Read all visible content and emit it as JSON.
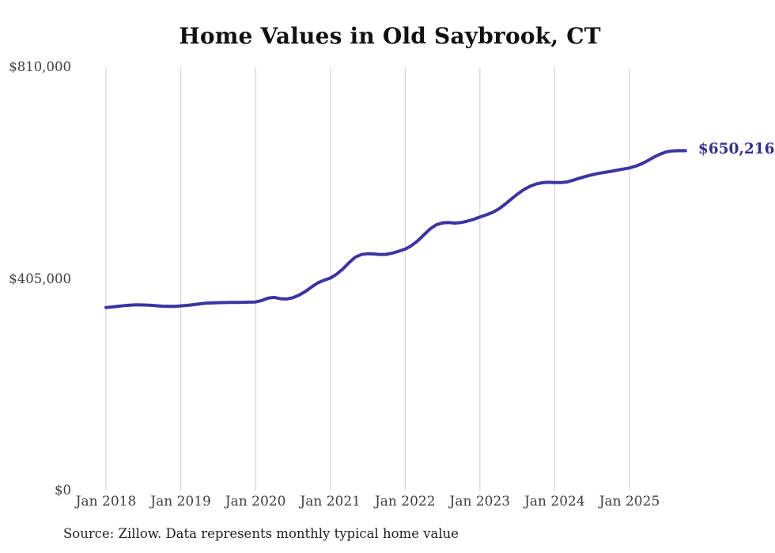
{
  "title": "Home Values in Old Saybrook, CT",
  "source_note": "Source: Zillow. Data represents monthly typical home value",
  "chart_data": {
    "type": "line",
    "title": "Home Values in Old Saybrook, CT",
    "xlabel": "",
    "ylabel": "",
    "ylim": [
      0,
      810000
    ],
    "grid": "vertical-gridlines-only",
    "legend": "none",
    "frequency": "monthly",
    "start_month_label": "Jan 2018",
    "line_color": "#3c34a0",
    "grid_color": "#cdcdcd",
    "axis_text_color": "#3e3e3e",
    "y_ticks": [
      {
        "label": "$810,000",
        "value": 810000
      },
      {
        "label": "$405,000",
        "value": 405000
      },
      {
        "label": "$0",
        "value": 0
      }
    ],
    "x_ticks": [
      {
        "label": "Jan 2018",
        "month_index": 0
      },
      {
        "label": "Jan 2019",
        "month_index": 12
      },
      {
        "label": "Jan 2020",
        "month_index": 24
      },
      {
        "label": "Jan 2021",
        "month_index": 36
      },
      {
        "label": "Jan 2022",
        "month_index": 48
      },
      {
        "label": "Jan 2023",
        "month_index": 60
      },
      {
        "label": "Jan 2024",
        "month_index": 72
      },
      {
        "label": "Jan 2025",
        "month_index": 84
      }
    ],
    "series": [
      {
        "name": "Typical home value",
        "values": [
          350200,
          351200,
          352600,
          354000,
          354900,
          355300,
          355100,
          354600,
          353700,
          352800,
          352300,
          352500,
          353300,
          354300,
          355700,
          357200,
          358300,
          359000,
          359500,
          359800,
          360000,
          360000,
          360200,
          360500,
          360800,
          363500,
          368000,
          369500,
          367000,
          366500,
          369000,
          374000,
          381000,
          389500,
          397500,
          402500,
          406500,
          414000,
          424000,
          436000,
          446500,
          451700,
          453200,
          452700,
          451500,
          452000,
          454500,
          458000,
          462000,
          468500,
          477500,
          489000,
          500500,
          508500,
          512000,
          512800,
          511800,
          512800,
          515500,
          519000,
          523400,
          527500,
          532000,
          538500,
          547500,
          557500,
          567000,
          575500,
          582000,
          586500,
          589000,
          589800,
          589400,
          589200,
          590500,
          594000,
          597800,
          601200,
          604300,
          606800,
          608800,
          610800,
          613000,
          615200,
          617200,
          620800,
          625500,
          631800,
          638500,
          644200,
          648300,
          650000,
          650400,
          650216
        ]
      }
    ],
    "final_value": 650216,
    "final_value_label": "$650,216"
  }
}
